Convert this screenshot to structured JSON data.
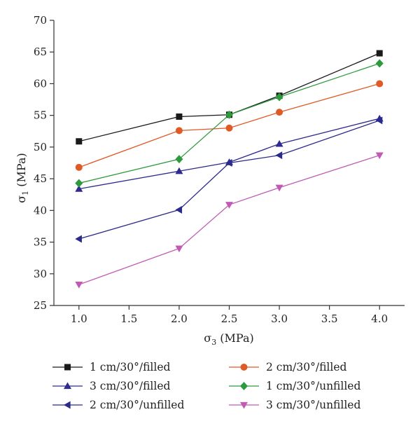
{
  "chart_data": {
    "type": "line",
    "x": [
      1.0,
      2.0,
      2.5,
      3.0,
      4.0
    ],
    "xlabel": {
      "main": "σ",
      "sub": "3",
      "unit": " (MPa)"
    },
    "ylabel": {
      "main": "σ",
      "sub": "1",
      "unit": " (MPa)"
    },
    "xlim": [
      0.75,
      4.25
    ],
    "ylim": [
      25,
      70
    ],
    "xticks": [
      "1.0",
      "1.5",
      "2.0",
      "2.5",
      "3.0",
      "3.5",
      "4.0"
    ],
    "yticks": [
      "25",
      "30",
      "35",
      "40",
      "45",
      "50",
      "55",
      "60",
      "65",
      "70"
    ],
    "grid": false,
    "legend_position": "bottom",
    "series": [
      {
        "name": "1 cm/30°/filled",
        "marker": "square",
        "color": "#1a1a1a",
        "values": [
          50.9,
          54.8,
          55.1,
          58.1,
          64.8
        ]
      },
      {
        "name": "2 cm/30°/filled",
        "marker": "circle",
        "color": "#e05a26",
        "values": [
          46.8,
          52.6,
          53.0,
          55.5,
          60.0
        ]
      },
      {
        "name": "3 cm/30°/filled",
        "marker": "triangle-up",
        "color": "#2e2a8f",
        "values": [
          43.4,
          46.2,
          47.6,
          50.5,
          54.5
        ]
      },
      {
        "name": "1 cm/30°/unfilled",
        "marker": "diamond",
        "color": "#2e9a3e",
        "values": [
          44.3,
          48.1,
          55.1,
          57.9,
          63.2
        ]
      },
      {
        "name": "2 cm/30°/unfilled",
        "marker": "triangle-left",
        "color": "#2a2a8a",
        "values": [
          35.5,
          40.1,
          47.5,
          48.7,
          54.2
        ]
      },
      {
        "name": "3 cm/30°/unfilled",
        "marker": "triangle-down",
        "color": "#c05ab4",
        "values": [
          28.3,
          34.0,
          40.9,
          43.6,
          48.7
        ]
      }
    ]
  }
}
